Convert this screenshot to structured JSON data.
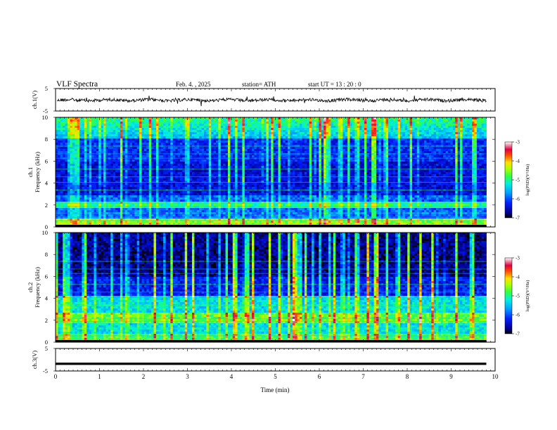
{
  "header": {
    "title": "VLF  Spectra",
    "date": "Feb. 4.  , 2025",
    "station": "station= ATH",
    "start": "start  UT  =   13 : 20 : 0"
  },
  "chart_data": [
    {
      "type": "line",
      "ylabel": "ch.1(V)",
      "ylim": [
        -5,
        5
      ],
      "y_ticks": [
        "5",
        "-5"
      ],
      "xlim": [
        0,
        10
      ],
      "series": [
        {
          "values_description_mean": 0,
          "amplitude": 1.2
        }
      ]
    },
    {
      "type": "heatmap",
      "ylabel": "ch.1\nFrequency (kHz)",
      "ylabel_lines": [
        "ch.1",
        "Frequency  (kHz)"
      ],
      "xlim": [
        0,
        10
      ],
      "ylim": [
        0,
        10
      ],
      "y_ticks": [
        "0",
        "2",
        "4",
        "6",
        "8",
        "10"
      ],
      "data_xmax": 9.8,
      "colorbar": {
        "label": "log(PSD)(V²/Hz)",
        "range": [
          -7,
          -3
        ],
        "ticks": [
          "-3",
          "-4",
          "-5",
          "-6",
          "-7"
        ]
      }
    },
    {
      "type": "heatmap",
      "ylabel": "ch.2\nFrequency (kHz)",
      "ylabel_lines": [
        "ch.2",
        "Frequency  (kHz)"
      ],
      "xlim": [
        0,
        10
      ],
      "ylim": [
        0,
        10
      ],
      "y_ticks": [
        "0",
        "2",
        "4",
        "6",
        "8",
        "10"
      ],
      "data_xmax": 9.8,
      "colorbar": {
        "label": "log(PSD)(V²/Hz)",
        "range": [
          -7,
          -3
        ],
        "ticks": [
          "-3",
          "-4",
          "-5",
          "-6",
          "-7"
        ]
      }
    },
    {
      "type": "line",
      "ylabel": "ch.3(V)",
      "ylim": [
        -5,
        5
      ],
      "y_ticks": [
        "5",
        "-5"
      ],
      "xlim": [
        0,
        10
      ],
      "series": [
        {
          "constant_value": -1.8
        }
      ]
    }
  ],
  "xaxis": {
    "label": "Time  (min)",
    "ticks": [
      "0",
      "1",
      "2",
      "3",
      "4",
      "5",
      "6",
      "7",
      "8",
      "9",
      "10"
    ]
  }
}
